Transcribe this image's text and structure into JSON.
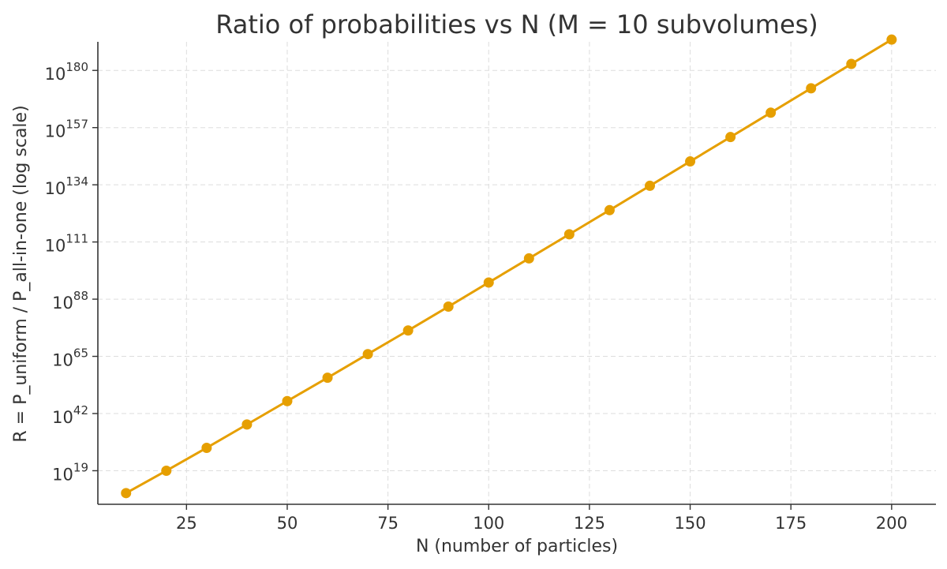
{
  "chart_data": {
    "type": "line",
    "title": "Ratio of probabilities vs N (M = 10 subvolumes)",
    "xlabel": "N (number of particles)",
    "ylabel": "R = P_uniform / P_all-in-one (log scale)",
    "xscale": "linear",
    "yscale": "log",
    "grid": true,
    "color": "#E69F00",
    "xlim": [
      3,
      211
    ],
    "ylim_log10": [
      5.5,
      191.5
    ],
    "xticks": [
      25,
      50,
      75,
      100,
      125,
      150,
      175,
      200
    ],
    "xtick_labels": [
      "25",
      "50",
      "75",
      "100",
      "125",
      "150",
      "175",
      "200"
    ],
    "yticks_log10": [
      19,
      42,
      65,
      88,
      111,
      134,
      157,
      180
    ],
    "ytick_labels": [
      {
        "base": "10",
        "exp": "19"
      },
      {
        "base": "10",
        "exp": "42"
      },
      {
        "base": "10",
        "exp": "65"
      },
      {
        "base": "10",
        "exp": "88"
      },
      {
        "base": "10",
        "exp": "111"
      },
      {
        "base": "10",
        "exp": "134"
      },
      {
        "base": "10",
        "exp": "157"
      },
      {
        "base": "10",
        "exp": "180"
      }
    ],
    "series": [
      {
        "name": "R",
        "x": [
          10,
          20,
          30,
          40,
          50,
          60,
          70,
          80,
          90,
          100,
          110,
          120,
          130,
          140,
          150,
          160,
          170,
          180,
          190,
          200
        ],
        "y_log10": [
          10.0,
          19.0,
          28.2,
          37.6,
          47.0,
          56.4,
          65.9,
          75.4,
          85.0,
          94.7,
          104.4,
          114.1,
          123.8,
          133.6,
          143.4,
          153.2,
          163.0,
          172.8,
          182.6,
          192.4
        ]
      }
    ]
  }
}
